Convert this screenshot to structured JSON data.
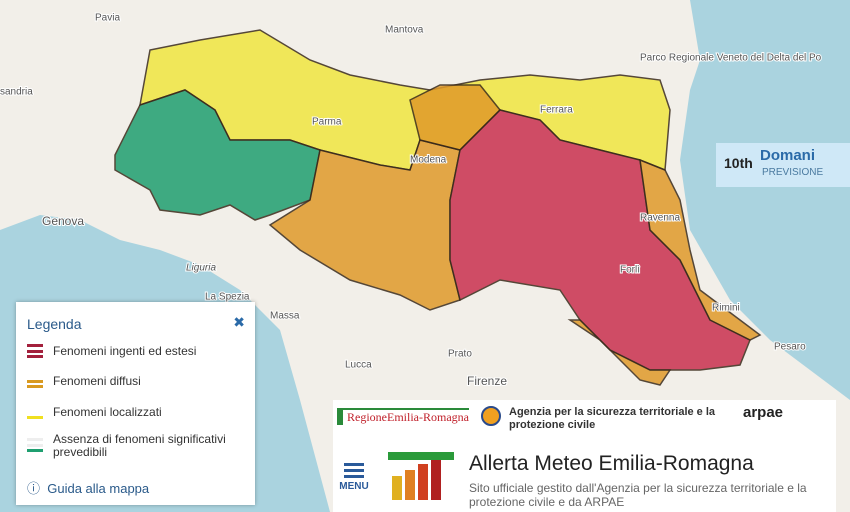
{
  "map": {
    "places": [
      "Pavia",
      "Mantova",
      "sandria",
      "Parco Regionale Veneto del Delta del Po",
      "Parma",
      "Modena",
      "Ferrara",
      "Ravenna",
      "Forlì",
      "Rimini",
      "Pesaro",
      "Genova",
      "Liguria",
      "La Spezia",
      "Massa",
      "Lucca",
      "Prato",
      "Firenze"
    ]
  },
  "date_panel": {
    "day": "10th",
    "label": "Domani",
    "sublabel": "PREVISIONE"
  },
  "legend": {
    "title": "Legenda",
    "items": [
      "Fenomeni ingenti ed estesi",
      "Fenomeni diffusi",
      "Fenomeni localizzati",
      "Assenza di fenomeni significativi prevedibili"
    ],
    "guide": "Guida alla mappa"
  },
  "footer": {
    "region": "RegioneEmilia-Romagna",
    "agency": "Agenzia per la sicurezza territoriale e la protezione civile",
    "arpae": "arpae",
    "menu": "MENU",
    "title": "Allerta Meteo Emilia-Romagna",
    "subtitle": "Sito ufficiale gestito dall'Agenzia per la sicurezza territoriale e la protezione civile e da ARPAE"
  }
}
